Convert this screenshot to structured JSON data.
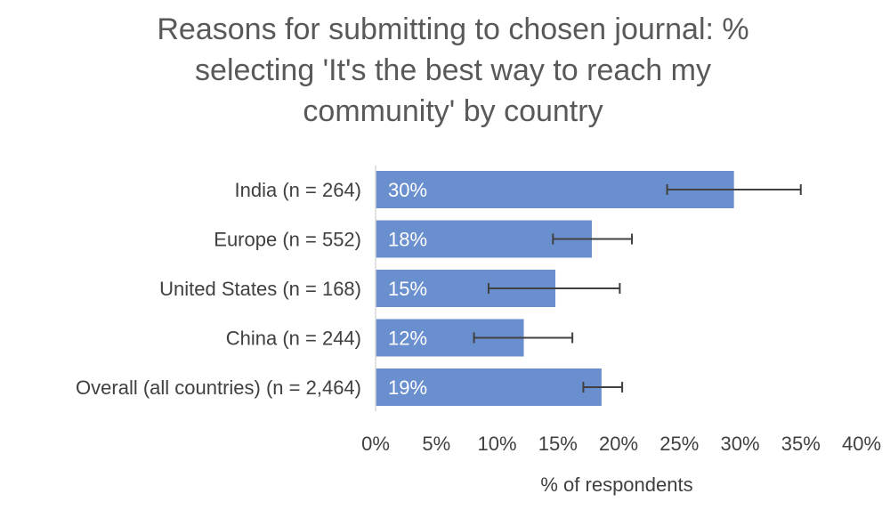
{
  "chart_data": {
    "type": "bar",
    "orientation": "horizontal",
    "title_lines": [
      "Reasons for submitting to chosen journal: %",
      "selecting 'It's the best way to reach my",
      "community' by country"
    ],
    "categories": [
      "India (n = 264)",
      "Europe (n = 552)",
      "United States (n = 168)",
      "China (n = 244)",
      "Overall (all countries) (n = 2,464)"
    ],
    "values": [
      0.295,
      0.178,
      0.148,
      0.122,
      0.186
    ],
    "data_labels": [
      "30%",
      "18%",
      "15%",
      "12%",
      "19%"
    ],
    "error_low": [
      0.24,
      0.146,
      0.093,
      0.081,
      0.171
    ],
    "error_high": [
      0.35,
      0.211,
      0.201,
      0.162,
      0.203
    ],
    "xlim": [
      0,
      0.4
    ],
    "xticks": [
      0,
      0.05,
      0.1,
      0.15,
      0.2,
      0.25,
      0.3,
      0.35,
      0.4
    ],
    "xtick_labels": [
      "0%",
      "5%",
      "10%",
      "15%",
      "20%",
      "25%",
      "30%",
      "35%",
      "40%"
    ],
    "xlabel": "% of respondents",
    "ylabel": "",
    "grid": false,
    "legend": "none",
    "bar_color": "#6a8fce",
    "error_bar_color": "#404040",
    "axis_line_color": "#d9d9d9"
  }
}
